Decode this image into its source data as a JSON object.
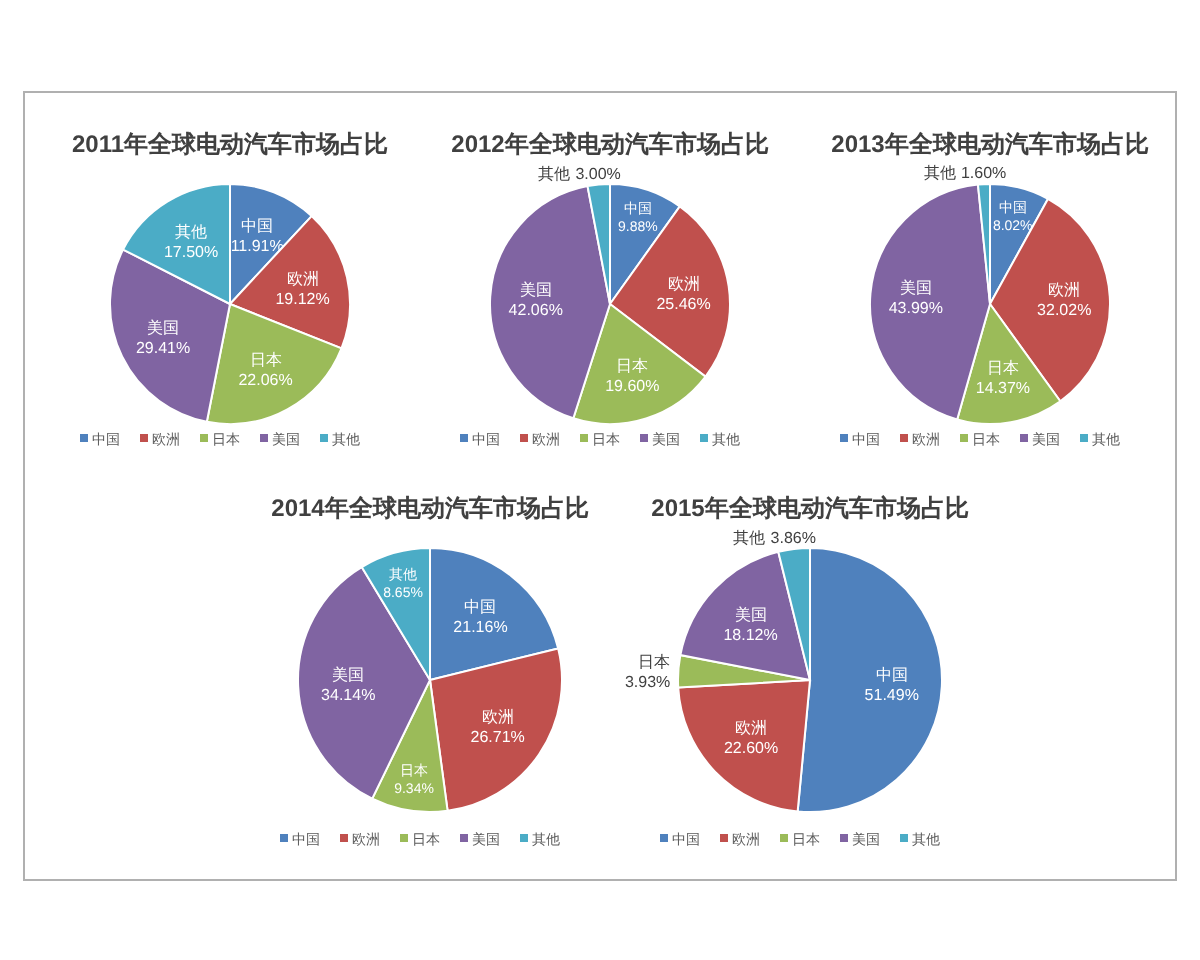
{
  "chart_data": [
    {
      "type": "pie",
      "title": "2011年全球电动汽车市场占比",
      "categories": [
        "中国",
        "欧洲",
        "日本",
        "美国",
        "其他"
      ],
      "values": [
        11.91,
        19.12,
        22.06,
        29.41,
        17.5
      ],
      "value_labels": [
        "11.91%",
        "19.12%",
        "22.06%",
        "29.41%",
        "17.50%"
      ],
      "colors": [
        "#4f81bd",
        "#c0504d",
        "#9bbb59",
        "#8064a2",
        "#4bacc6"
      ],
      "legend": "bottom"
    },
    {
      "type": "pie",
      "title": "2012年全球电动汽车市场占比",
      "categories": [
        "中国",
        "欧洲",
        "日本",
        "美国",
        "其他"
      ],
      "values": [
        9.88,
        25.46,
        19.6,
        42.06,
        3.0
      ],
      "value_labels": [
        "9.88%",
        "25.46%",
        "19.60%",
        "42.06%",
        "3.00%"
      ],
      "colors": [
        "#4f81bd",
        "#c0504d",
        "#9bbb59",
        "#8064a2",
        "#4bacc6"
      ],
      "legend": "bottom"
    },
    {
      "type": "pie",
      "title": "2013年全球电动汽车市场占比",
      "categories": [
        "中国",
        "欧洲",
        "日本",
        "美国",
        "其他"
      ],
      "values": [
        8.02,
        32.02,
        14.37,
        43.99,
        1.6
      ],
      "value_labels": [
        "8.02%",
        "32.02%",
        "14.37%",
        "43.99%",
        "1.60%"
      ],
      "colors": [
        "#4f81bd",
        "#c0504d",
        "#9bbb59",
        "#8064a2",
        "#4bacc6"
      ],
      "legend": "bottom"
    },
    {
      "type": "pie",
      "title": "2014年全球电动汽车市场占比",
      "categories": [
        "中国",
        "欧洲",
        "日本",
        "美国",
        "其他"
      ],
      "values": [
        21.16,
        26.71,
        9.34,
        34.14,
        8.65
      ],
      "value_labels": [
        "21.16%",
        "26.71%",
        "9.34%",
        "34.14%",
        "8.65%"
      ],
      "colors": [
        "#4f81bd",
        "#c0504d",
        "#9bbb59",
        "#8064a2",
        "#4bacc6"
      ],
      "legend": "bottom"
    },
    {
      "type": "pie",
      "title": "2015年全球电动汽车市场占比",
      "categories": [
        "中国",
        "欧洲",
        "日本",
        "美国",
        "其他"
      ],
      "values": [
        51.49,
        22.6,
        3.93,
        18.12,
        3.86
      ],
      "value_labels": [
        "51.49%",
        "22.60%",
        "3.93%",
        "18.12%",
        "3.86%"
      ],
      "colors": [
        "#4f81bd",
        "#c0504d",
        "#9bbb59",
        "#8064a2",
        "#4bacc6"
      ],
      "legend": "bottom"
    }
  ]
}
